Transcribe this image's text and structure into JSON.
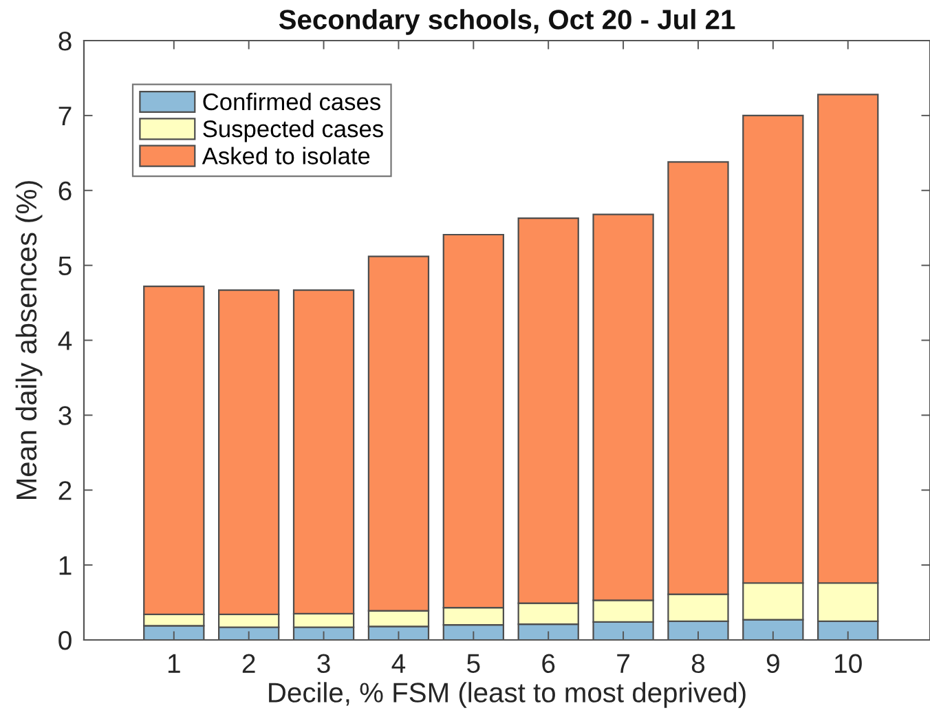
{
  "chart_data": {
    "type": "bar",
    "title": "Secondary schools, Oct 20 - Jul 21",
    "xlabel": "Decile, % FSM (least to most deprived)",
    "ylabel": "Mean daily absences (%)",
    "categories": [
      "1",
      "2",
      "3",
      "4",
      "5",
      "6",
      "7",
      "8",
      "9",
      "10"
    ],
    "stacked": true,
    "series": [
      {
        "name": "Confirmed cases",
        "color": "#8dbbd9",
        "values": [
          0.19,
          0.17,
          0.17,
          0.18,
          0.2,
          0.21,
          0.24,
          0.25,
          0.27,
          0.25
        ]
      },
      {
        "name": "Suspected cases",
        "color": "#ffffc0",
        "values": [
          0.15,
          0.17,
          0.18,
          0.21,
          0.23,
          0.28,
          0.29,
          0.36,
          0.49,
          0.51
        ]
      },
      {
        "name": "Asked to isolate",
        "color": "#fc8d59",
        "values": [
          4.38,
          4.33,
          4.32,
          4.73,
          4.98,
          5.14,
          5.15,
          5.77,
          6.24,
          6.52
        ]
      }
    ],
    "ylim": [
      0,
      8
    ],
    "yticks": [
      0,
      1,
      2,
      3,
      4,
      5,
      6,
      7,
      8
    ],
    "legend": "top left"
  }
}
